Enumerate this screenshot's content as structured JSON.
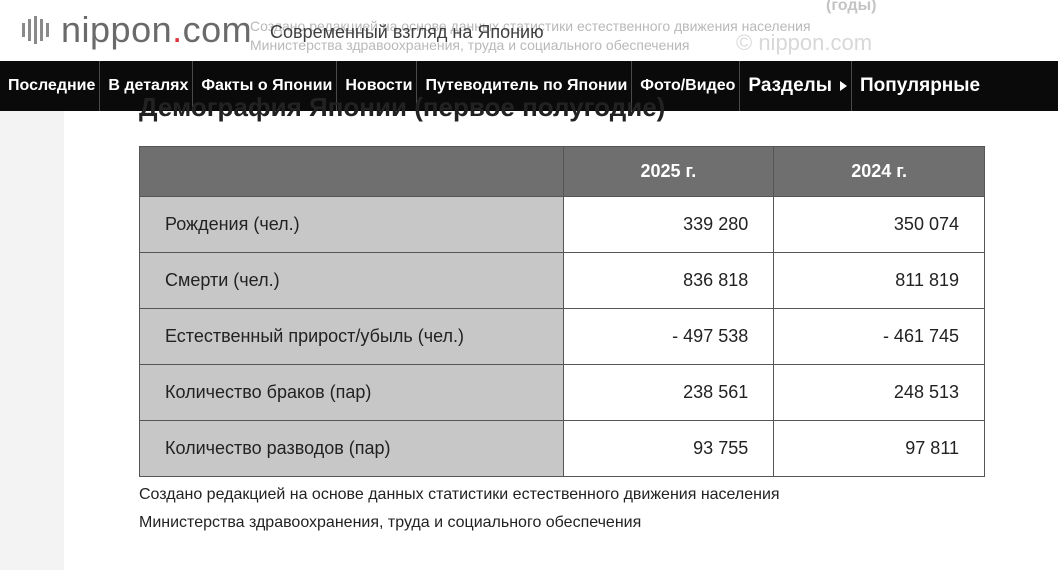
{
  "header": {
    "logo_text": "nippon",
    "logo_dot": ".",
    "logo_com": "com",
    "tagline": "Современный взгляд на Японию"
  },
  "ghost": {
    "years": "(годы)",
    "source_line1": "Создано редакцией на основе данных статистики естественного движения населения",
    "source_line2": "Министерства здравоохранения, труда и социального обеспечения",
    "brand": "© nippon.com"
  },
  "nav": {
    "items": [
      "Последние",
      "В деталях",
      "Факты о Японии",
      "Новости",
      "Путеводитель по Японии",
      "Фото/Видео"
    ],
    "sections_label": "Разделы",
    "popular_label": "Популярные"
  },
  "content": {
    "title": "Демография Японии (первое полугодие)",
    "table": {
      "headers": [
        "",
        "2025 г.",
        "2024 г."
      ],
      "rows": [
        [
          "Рождения (чел.)",
          "339 280",
          "350 074"
        ],
        [
          "Смерти (чел.)",
          "836 818",
          "811 819"
        ],
        [
          "Естественный прирост/убыль (чел.)",
          "- 497 538",
          "- 461 745"
        ],
        [
          "Количество браков (пар)",
          "238 561",
          "248 513"
        ],
        [
          "Количество разводов (пар)",
          "93 755",
          "97 811"
        ]
      ]
    },
    "note_line1": "Создано редакцией на основе данных статистики естественного движения населения",
    "note_line2": "Министерства здравоохранения, труда и социального обеспечения"
  }
}
